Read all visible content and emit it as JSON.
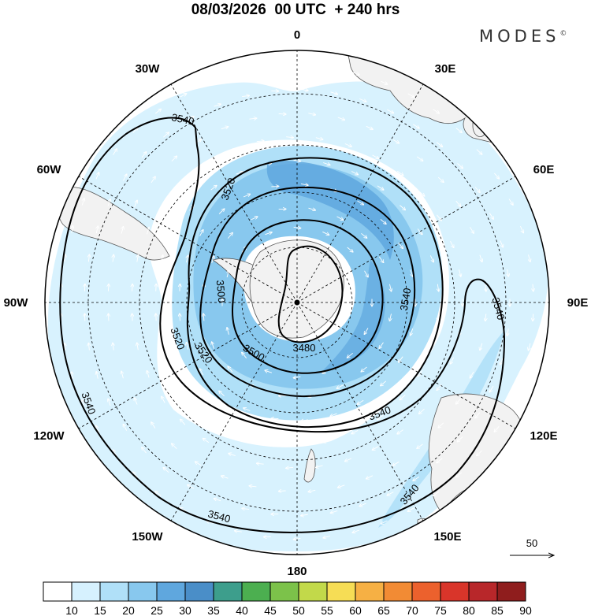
{
  "header": {
    "title": "08/03/2026  00 UTC  + 240 hrs",
    "brand": "MODES",
    "brand_mark": "©"
  },
  "map": {
    "projection": "south-polar-stereographic",
    "longitude_labels": {
      "top": "0",
      "top_right": "30E",
      "right_upper": "60E",
      "right": "90E",
      "right_lower": "120E",
      "bottom_right": "150E",
      "bottom": "180",
      "bottom_left": "150W",
      "left_lower": "120W",
      "left": "90W",
      "left_upper": "60W",
      "top_left": "30W"
    },
    "contour_labels": [
      "3540",
      "3520",
      "3500",
      "3480",
      "3500",
      "3520",
      "3540",
      "3520",
      "3540",
      "3540",
      "3540",
      "3540",
      "3540"
    ],
    "vector_reference": "50"
  },
  "colorbar": {
    "levels": [
      "10",
      "15",
      "20",
      "25",
      "30",
      "35",
      "40",
      "45",
      "50",
      "55",
      "60",
      "65",
      "70",
      "75",
      "80",
      "85",
      "90"
    ],
    "colors": [
      "#ffffff",
      "#d6f1fe",
      "#b0e0f8",
      "#88c8ee",
      "#5fa7de",
      "#4a8ec8",
      "#3d9e8c",
      "#4caf50",
      "#7cc24a",
      "#c2d94a",
      "#f6dd55",
      "#f6b044",
      "#f28b34",
      "#ec612d",
      "#d9352a",
      "#b8272a",
      "#8f1d1d"
    ]
  }
}
